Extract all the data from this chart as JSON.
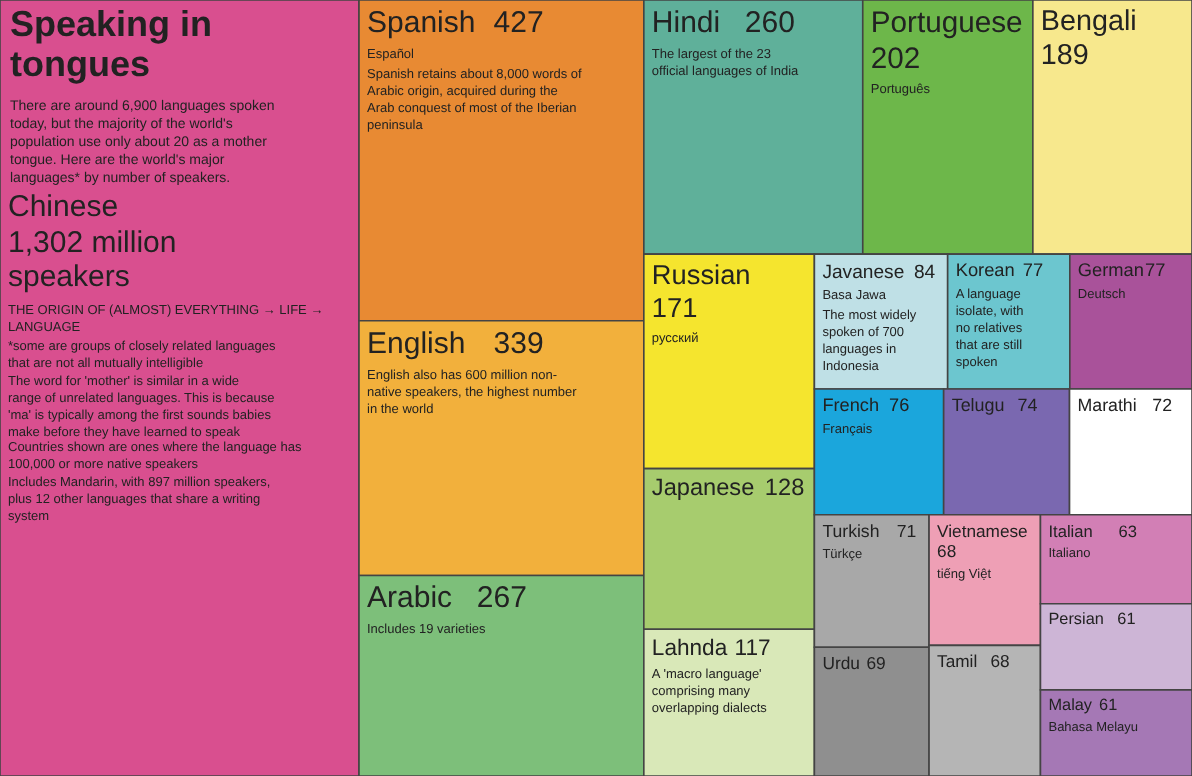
{
  "chart_data": {
    "type": "other",
    "title": "Speaking in tongues",
    "subtitle": "There are around 6,900 languages spoken today, but the majority of the world's population use only about 20 as a mother tongue. Here are the world's major languages* by number of speakers.",
    "categories": [
      "Chinese",
      "Spanish",
      "English",
      "Arabic",
      "Hindi",
      "Portuguese",
      "Bengali",
      "Russian",
      "Japanese",
      "Lahnda",
      "Javanese",
      "Korean",
      "German",
      "French",
      "Telugu",
      "Marathi",
      "Turkish",
      "Urdu",
      "Vietnamese",
      "Tamil",
      "Italian",
      "Persian",
      "Malay"
    ],
    "values": [
      1302,
      427,
      339,
      267,
      260,
      202,
      189,
      171,
      128,
      117,
      84,
      77,
      77,
      76,
      74,
      72,
      71,
      69,
      68,
      68,
      63,
      61,
      61
    ],
    "value_labels": [
      "1,302 million speakers",
      "427",
      "339",
      "267",
      "260",
      "202",
      "189",
      "171",
      "128",
      "117",
      "84",
      "77",
      "77",
      "76",
      "74",
      "72",
      "71",
      "69",
      "68",
      "68",
      "63",
      "61",
      "61"
    ],
    "colors": [
      "#d94f8f",
      "#e88a33",
      "#f2b03c",
      "#7dbf7a",
      "#5fb09a",
      "#6db74a",
      "#f7e88d",
      "#f5e52e",
      "#a7cc6e",
      "#d9e8b8",
      "#bfe0e6",
      "#6cc6cf",
      "#a9529a",
      "#1ba6dc",
      "#7a68b0",
      "#ffffff",
      "#a8a8a8",
      "#8f8f8f",
      "#ee9fb5",
      "#b5b5b5",
      "#d27fb5",
      "#cdb5d6",
      "#a578b5"
    ],
    "annotations": [
      {
        "text": "THE ORIGIN OF (ALMOST) EVERYTHING → LIFE → LANGUAGE",
        "x": "Chinese"
      },
      {
        "text": "*some are groups of closely related languages that are not all mutually intelligible",
        "x": "Chinese"
      },
      {
        "text": "The word for 'mother' is similar in a wide range of unrelated languages. This is because 'ma' is typically among the first sounds babies make before they have learned to speak",
        "x": "Chinese"
      },
      {
        "text": "Countries shown are ones where the language has 100,000 or more native speakers",
        "x": "Chinese"
      },
      {
        "text": "Includes Mandarin, with 897 million speakers, plus 12 other languages that share a writing system",
        "x": "Chinese"
      },
      {
        "text": "Español",
        "x": "Spanish"
      },
      {
        "text": "Spanish retains about 8,000 words of Arabic origin, acquired during the Arab conquest of most of the Iberian peninsula",
        "x": "Spanish"
      },
      {
        "text": "English also has 600 million non-native speakers, the highest number in the world",
        "x": "English"
      },
      {
        "text": "Includes 19 varieties",
        "x": "Arabic"
      },
      {
        "text": "The largest of the 23 official languages of India",
        "x": "Hindi"
      },
      {
        "text": "Português",
        "x": "Portuguese"
      },
      {
        "text": "русский",
        "x": "Russian"
      },
      {
        "text": "A 'macro language' comprising many overlapping dialects",
        "x": "Lahnda"
      },
      {
        "text": "Basa Jawa",
        "x": "Javanese"
      },
      {
        "text": "The most widely spoken of 700 languages in Indonesia",
        "x": "Javanese"
      },
      {
        "text": "A language isolate, with no relatives that are still spoken",
        "x": "Korean"
      },
      {
        "text": "Deutsch",
        "x": "German"
      },
      {
        "text": "Français",
        "x": "French"
      },
      {
        "text": "Türkçe",
        "x": "Turkish"
      },
      {
        "text": "tiếng Việt",
        "x": "Vietnamese"
      },
      {
        "text": "Italiano",
        "x": "Italian"
      },
      {
        "text": "Bahasa Melayu",
        "x": "Malay"
      }
    ]
  }
}
